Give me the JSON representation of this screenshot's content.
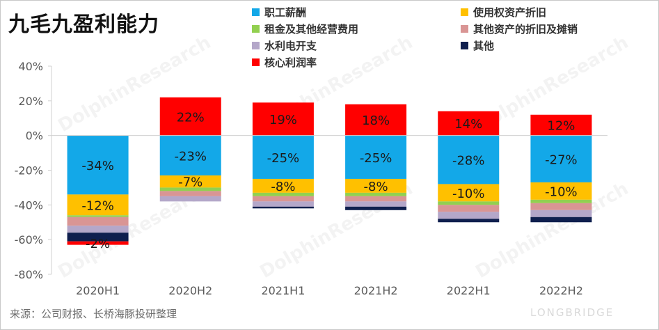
{
  "title": "九毛九盈利能力",
  "source": "来源：公司财报、长桥海豚投研整理",
  "brand": "LONGBRIDGE",
  "legend": [
    {
      "label": "职工薪酬",
      "color": "#13a8e8"
    },
    {
      "label": "使用权资产折旧",
      "color": "#ffc000"
    },
    {
      "label": "租金及其他经营费用",
      "color": "#92d050"
    },
    {
      "label": "其他资产的折旧及摊销",
      "color": "#d99594"
    },
    {
      "label": "水利电开支",
      "color": "#b4a7c9"
    },
    {
      "label": "其他",
      "color": "#0f1f4e"
    },
    {
      "label": "核心利润率",
      "color": "#ff0000"
    }
  ],
  "chart_data": {
    "type": "bar",
    "stacked": true,
    "title": "九毛九盈利能力",
    "xlabel": "",
    "ylabel": "",
    "ylim": [
      -80,
      40
    ],
    "y_ticks": [
      40,
      20,
      0,
      -20,
      -40,
      -60,
      -80
    ],
    "y_tick_labels": [
      "40%",
      "20%",
      "0%",
      "-20%",
      "-40%",
      "-60%",
      "-80%"
    ],
    "categories": [
      "2020H1",
      "2020H2",
      "2021H1",
      "2021H2",
      "2022H1",
      "2022H2"
    ],
    "series": [
      {
        "name": "职工薪酬",
        "color": "#13a8e8",
        "values": [
          -34,
          -23,
          -25,
          -25,
          -28,
          -27
        ],
        "labels": [
          "-34%",
          "-23%",
          "-25%",
          "-25%",
          "-28%",
          "-27%"
        ]
      },
      {
        "name": "使用权资产折旧",
        "color": "#ffc000",
        "values": [
          -12,
          -7,
          -8,
          -8,
          -10,
          -10
        ],
        "labels": [
          "-12%",
          "-7%",
          "-8%",
          "-8%",
          "-10%",
          "-10%"
        ]
      },
      {
        "name": "租金及其他经营费用",
        "color": "#92d050",
        "values": [
          -1,
          -2,
          -2,
          -2,
          -2,
          -2
        ],
        "labels": []
      },
      {
        "name": "其他资产的折旧及摊销",
        "color": "#d99594",
        "values": [
          -5,
          -3,
          -3,
          -3,
          -4,
          -4
        ],
        "labels": []
      },
      {
        "name": "水利电开支",
        "color": "#b4a7c9",
        "values": [
          -4,
          -3,
          -3,
          -3,
          -4,
          -4
        ],
        "labels": []
      },
      {
        "name": "其他",
        "color": "#0f1f4e",
        "values": [
          -5,
          0,
          -1,
          -2,
          -2,
          -3
        ],
        "labels": []
      },
      {
        "name": "核心利润率",
        "color": "#ff0000",
        "values": [
          -2,
          22,
          19,
          18,
          14,
          12
        ],
        "labels": [
          "-2%",
          "22%",
          "19%",
          "18%",
          "14%",
          "12%"
        ]
      }
    ]
  }
}
